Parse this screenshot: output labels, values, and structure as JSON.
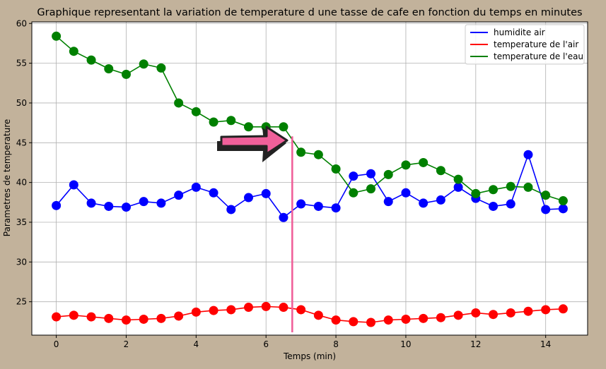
{
  "chart_data": {
    "type": "line",
    "title": "Graphique representant la variation de temperature d une tasse de cafe en fonction du temps en minutes",
    "xlabel": "Temps (min)",
    "ylabel": "Parametres de temperature",
    "xlim": [
      -0.7,
      15.2
    ],
    "ylim": [
      20.8,
      60.2
    ],
    "xticks": [
      0,
      2,
      4,
      6,
      8,
      10,
      12,
      14
    ],
    "yticks": [
      25,
      30,
      35,
      40,
      45,
      50,
      55,
      60
    ],
    "grid": true,
    "legend_position": "top-right",
    "x": [
      0,
      0.5,
      1,
      1.5,
      2,
      2.5,
      3,
      3.5,
      4,
      4.5,
      5,
      5.5,
      6,
      6.5,
      7,
      7.5,
      8,
      8.5,
      9,
      9.5,
      10,
      10.5,
      11,
      11.5,
      12,
      12.5,
      13,
      13.5,
      14,
      14.5
    ],
    "series": [
      {
        "name": "humidite air",
        "color": "#0000ff",
        "values": [
          37.1,
          39.7,
          37.4,
          37.0,
          36.9,
          37.6,
          37.4,
          38.4,
          39.4,
          38.7,
          36.6,
          38.1,
          38.6,
          35.6,
          37.3,
          37.0,
          36.8,
          40.8,
          41.1,
          37.6,
          38.7,
          37.4,
          37.8,
          39.4,
          38.0,
          37.0,
          37.3,
          43.5,
          36.6,
          36.7
        ]
      },
      {
        "name": "temperature de l'air",
        "color": "#ff0000",
        "values": [
          23.1,
          23.3,
          23.1,
          22.9,
          22.7,
          22.8,
          22.9,
          23.2,
          23.7,
          23.9,
          24.0,
          24.3,
          24.4,
          24.3,
          24.0,
          23.3,
          22.7,
          22.5,
          22.4,
          22.7,
          22.8,
          22.9,
          23.0,
          23.3,
          23.6,
          23.4,
          23.6,
          23.8,
          24.0,
          24.1
        ]
      },
      {
        "name": "temperature de l'eau",
        "color": "#008000",
        "values": [
          58.4,
          56.5,
          55.4,
          54.3,
          53.6,
          54.9,
          54.4,
          50.0,
          48.9,
          47.6,
          47.8,
          47.0,
          47.0,
          47.0,
          43.8,
          43.5,
          41.7,
          38.7,
          39.2,
          41.0,
          42.2,
          42.5,
          41.5,
          40.4,
          38.6,
          39.1,
          39.5,
          39.4,
          38.4,
          37.7
        ]
      }
    ]
  },
  "annotation": {
    "marker_x": 6.75,
    "marker_color": "#f0609a",
    "arrow_color": "#f0609a",
    "arrow_outline_color": "#222222"
  }
}
